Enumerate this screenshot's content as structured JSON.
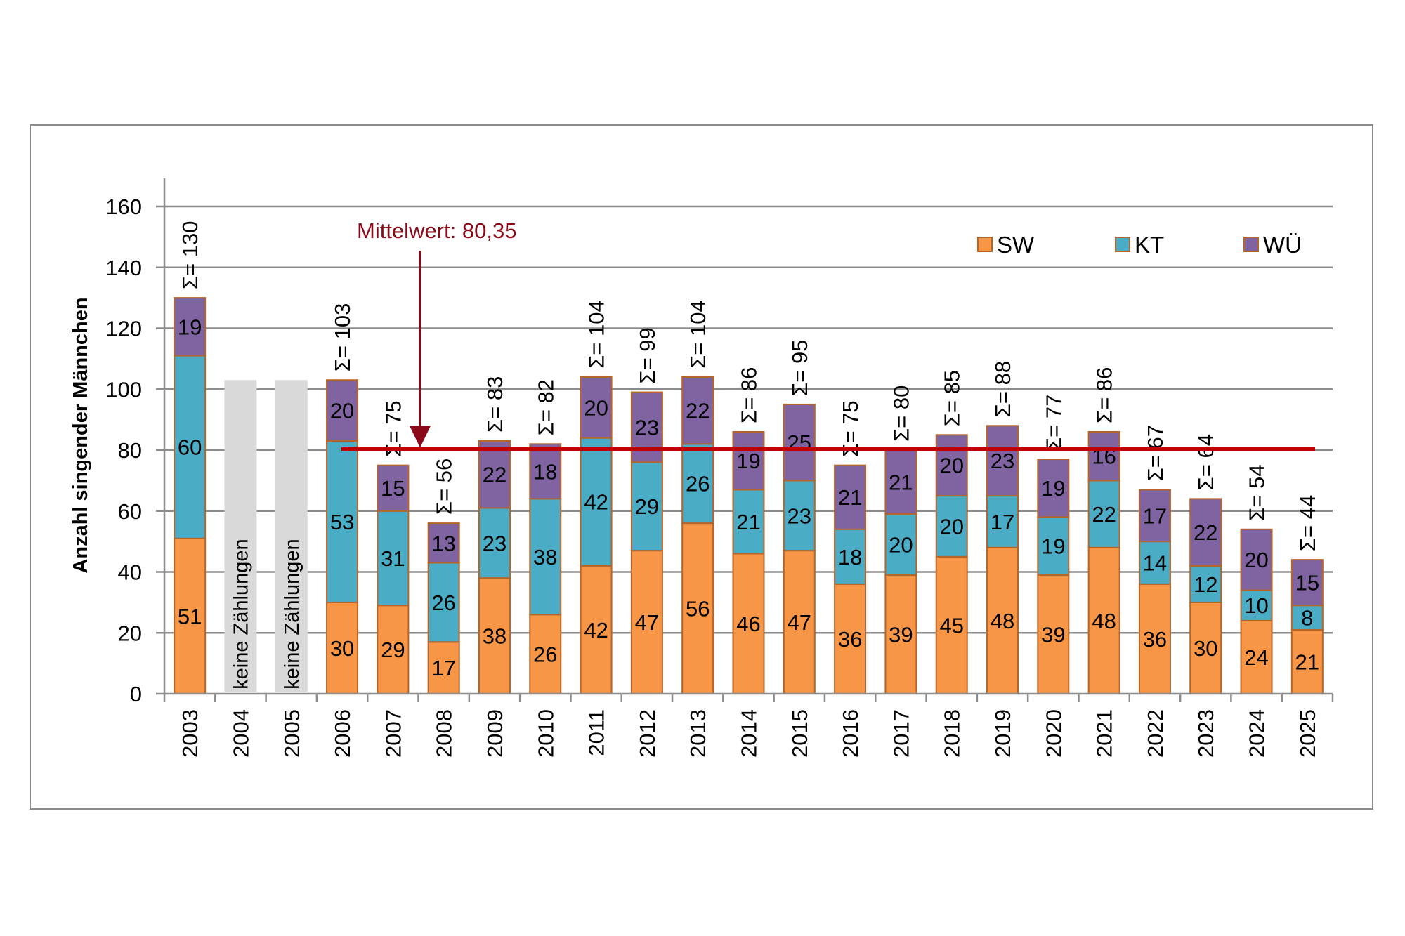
{
  "chart_data": {
    "type": "bar",
    "stacked": true,
    "title": "",
    "xlabel": "",
    "ylabel": "Anzahl singender Männchen",
    "ylim": [
      0,
      160
    ],
    "yticks": [
      0,
      20,
      40,
      60,
      80,
      100,
      120,
      140,
      160
    ],
    "grid": true,
    "legend_position": "top-right",
    "categories": [
      "2003",
      "2004",
      "2005",
      "2006",
      "2007",
      "2008",
      "2009",
      "2010",
      "2011",
      "2012",
      "2013",
      "2014",
      "2015",
      "2016",
      "2017",
      "2018",
      "2019",
      "2020",
      "2021",
      "2022",
      "2023",
      "2024",
      "2025"
    ],
    "series": [
      {
        "name": "SW",
        "color": "#f79646",
        "values": [
          51,
          null,
          null,
          30,
          29,
          17,
          38,
          26,
          42,
          47,
          56,
          46,
          47,
          36,
          39,
          45,
          48,
          39,
          48,
          36,
          30,
          24,
          21
        ]
      },
      {
        "name": "KT",
        "color": "#4bacc6",
        "values": [
          60,
          null,
          null,
          53,
          31,
          26,
          23,
          38,
          42,
          29,
          26,
          21,
          23,
          18,
          20,
          20,
          17,
          19,
          22,
          14,
          12,
          10,
          8
        ]
      },
      {
        "name": "WÜ",
        "color": "#8064a2",
        "values": [
          19,
          null,
          null,
          20,
          15,
          13,
          22,
          18,
          20,
          23,
          22,
          19,
          25,
          21,
          21,
          20,
          23,
          19,
          16,
          17,
          22,
          20,
          15
        ]
      }
    ],
    "totals": [
      130,
      null,
      null,
      103,
      75,
      56,
      83,
      82,
      104,
      99,
      104,
      86,
      95,
      75,
      80,
      85,
      88,
      77,
      86,
      67,
      64,
      54,
      44
    ],
    "total_label_prefix": "Σ= ",
    "no_data": {
      "categories": [
        "2004",
        "2005"
      ],
      "label": "keine Zählungen",
      "placeholder_height": 103,
      "color": "#d9d9d9"
    },
    "mean_line": {
      "value": 80.35,
      "label": "Mittelwert: 80,35",
      "line_color": "#c00000",
      "label_color": "#8b0a1a"
    },
    "bar_border_color": "#b5652a",
    "grid_color": "#8c8c8c"
  }
}
